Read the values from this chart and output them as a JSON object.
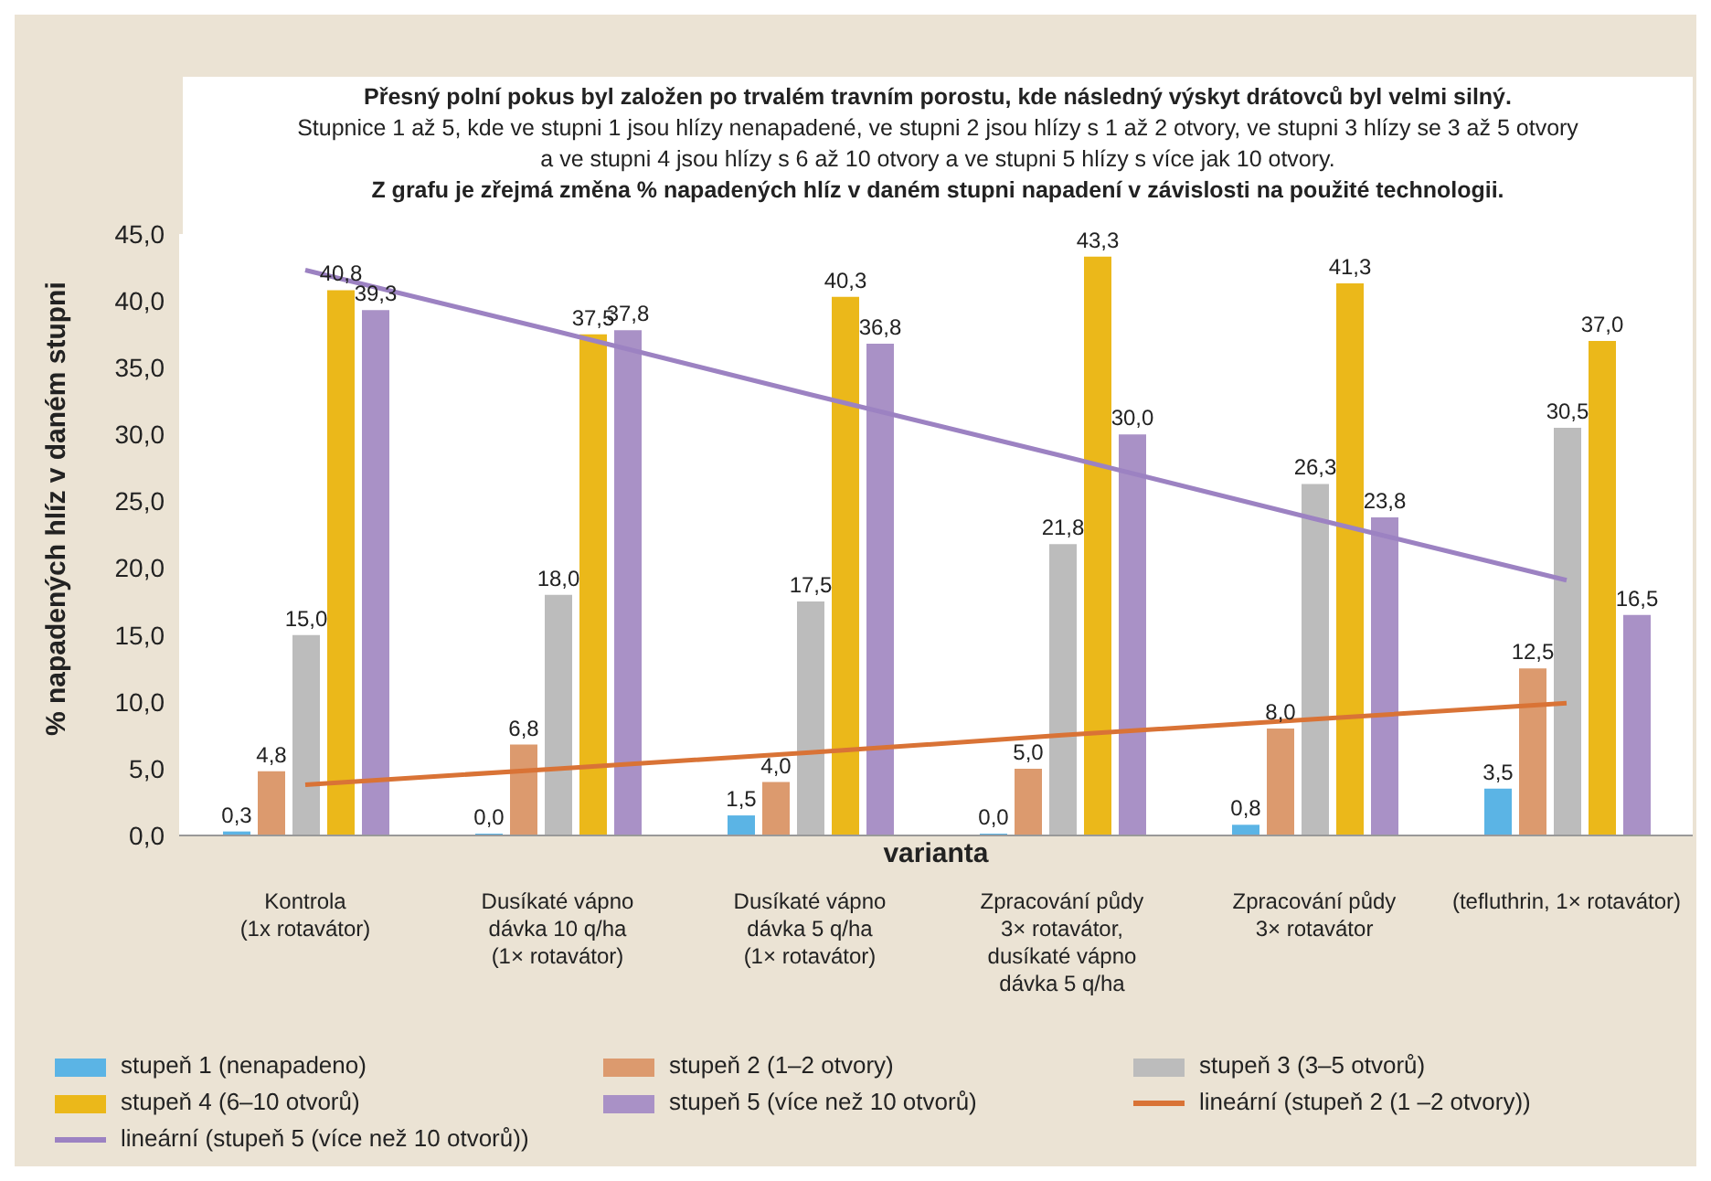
{
  "chart_data": {
    "type": "bar",
    "title": "Přesný polní pokus byl založen po trvalém travním porostu, kde následný výskyt drátovců byl velmi silný.",
    "subtitle": "Stupnice 1 až 5, kde ve stupni 1 jsou hlízy nenapadené, ve stupni 2 jsou hlízy s 1 až 2 otvory, ve stupni 3 hlízy se 3 až 5 otvory\na ve stupni 4 jsou hlízy s 6 až 10 otvory a ve stupni 5 hlízy s více jak 10 otvory.",
    "annotations": [
      "Z grafu je zřejmá změna % napadených hlíz v daném stupni napadení v závislosti na použité technologii."
    ],
    "xlabel": "varianta",
    "ylabel": "% napadených hlíz v daném stupni",
    "categories": [
      "Kontrola\n(1x rotavátor)",
      "Dusíkaté vápno\ndávka 10 q/ha\n(1× rotavátor)",
      "Dusíkaté vápno\ndávka 5 q/ha\n(1× rotavátor)",
      "Zpracování půdy\n3× rotavátor,\ndusíkaté vápno\ndávka 5 q/ha",
      "Zpracování půdy\n3× rotavátor",
      "(tefluthrin, 1× rotavátor)"
    ],
    "series": [
      {
        "name": "stupeň 1 (nenapadeno)",
        "color": "#5bb4e5",
        "values": [
          0.3,
          0.0,
          1.5,
          0.0,
          0.8,
          3.5
        ],
        "value_labels": [
          "0,3",
          "0,0",
          "1,5",
          "0,0",
          "0,8",
          "3,5"
        ]
      },
      {
        "name": "stupeň 2 (1–2 otvory)",
        "color": "#dc9a6e",
        "values": [
          4.8,
          6.8,
          4.0,
          5.0,
          8.0,
          12.5
        ],
        "value_labels": [
          "4,8",
          "6,8",
          "4,0",
          "5,0",
          "8,0",
          "12,5"
        ]
      },
      {
        "name": "stupeň 3 (3–5 otvorů)",
        "color": "#bcbcbc",
        "values": [
          15.0,
          18.0,
          17.5,
          21.8,
          26.3,
          30.5
        ],
        "value_labels": [
          "15,0",
          "18,0",
          "17,5",
          "21,8",
          "26,3",
          "30,5"
        ]
      },
      {
        "name": "stupeň 4 (6–10 otvorů)",
        "color": "#ebb81a",
        "values": [
          40.8,
          37.5,
          40.3,
          43.3,
          41.3,
          37.0
        ],
        "value_labels": [
          "40,8",
          "37,5",
          "40,3",
          "43,3",
          "41,3",
          "37,0"
        ]
      },
      {
        "name": "stupeň 5 (více než 10 otvorů)",
        "color": "#a991c6",
        "values": [
          39.3,
          37.8,
          36.8,
          30.0,
          23.8,
          16.5
        ],
        "value_labels": [
          "39,3",
          "37,8",
          "36,8",
          "30,0",
          "23,8",
          "16,5"
        ]
      },
      {
        "name": "lineární (stupeň 2 (1 –2 otvory))",
        "type": "line",
        "color": "#d97336",
        "values": [
          3.8,
          5.0,
          6.2,
          7.5,
          8.7,
          9.9
        ]
      },
      {
        "name": "lineární (stupeň 5 (více než 10 otvorů))",
        "type": "line",
        "color": "#9c82c2",
        "values": [
          42.3,
          37.7,
          33.0,
          28.4,
          23.7,
          19.1
        ]
      }
    ],
    "ylim": [
      0,
      45
    ],
    "yticks": [
      {
        "value": 0,
        "label": "0,0"
      },
      {
        "value": 5,
        "label": "5,0"
      },
      {
        "value": 10,
        "label": "10,0"
      },
      {
        "value": 15,
        "label": "15,0"
      },
      {
        "value": 20,
        "label": "20,0"
      },
      {
        "value": 25,
        "label": "25,0"
      },
      {
        "value": 30,
        "label": "30,0"
      },
      {
        "value": 35,
        "label": "35,0"
      },
      {
        "value": 40,
        "label": "40,0"
      },
      {
        "value": 45,
        "label": "45,0"
      }
    ],
    "legend": "bottom",
    "grid": false,
    "marker": "none"
  }
}
